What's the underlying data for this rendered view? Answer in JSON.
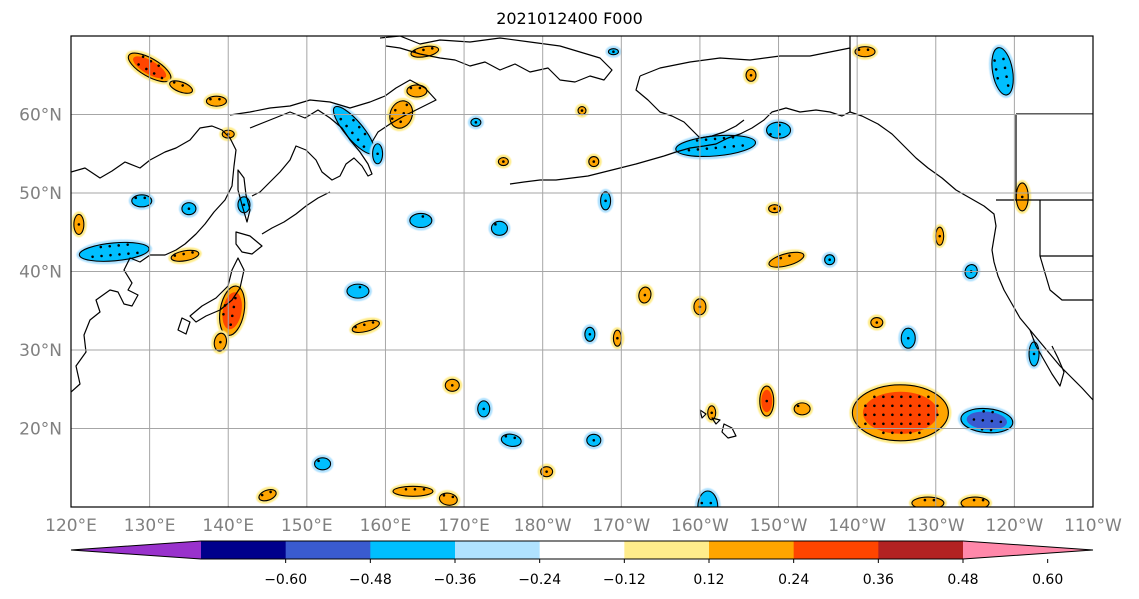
{
  "title": "2021012400 F000",
  "map": {
    "lon_range": [
      120,
      250
    ],
    "lat_range": [
      10,
      70
    ],
    "x_ticks": [
      {
        "lon": 120,
        "label": "120°E"
      },
      {
        "lon": 130,
        "label": "130°E"
      },
      {
        "lon": 140,
        "label": "140°E"
      },
      {
        "lon": 150,
        "label": "150°E"
      },
      {
        "lon": 160,
        "label": "160°E"
      },
      {
        "lon": 170,
        "label": "170°E"
      },
      {
        "lon": 180,
        "label": "180°W"
      },
      {
        "lon": 190,
        "label": "170°W"
      },
      {
        "lon": 200,
        "label": "160°W"
      },
      {
        "lon": 210,
        "label": "150°W"
      },
      {
        "lon": 220,
        "label": "140°W"
      },
      {
        "lon": 230,
        "label": "130°W"
      },
      {
        "lon": 240,
        "label": "120°W"
      },
      {
        "lon": 250,
        "label": "110°W"
      }
    ],
    "y_ticks": [
      {
        "lat": 20,
        "label": "20°N"
      },
      {
        "lat": 30,
        "label": "30°N"
      },
      {
        "lat": 40,
        "label": "40°N"
      },
      {
        "lat": 50,
        "label": "50°N"
      },
      {
        "lat": 60,
        "label": "60°N"
      }
    ],
    "grid": true
  },
  "colorbar": {
    "colors": [
      "#9932CC",
      "#00008B",
      "#3A5BD0",
      "#00BFFF",
      "#B0E2FF",
      "#FFFFFF",
      "#FFEC8B",
      "#FFA500",
      "#FF4500",
      "#B22222",
      "#FF88AA"
    ],
    "tick_labels": [
      "-0.60",
      "-0.48",
      "-0.36",
      "-0.24",
      "-0.12",
      "0.12",
      "0.24",
      "0.36",
      "0.48",
      "0.60"
    ],
    "extend": "both"
  },
  "anomalies": [
    {
      "lon": 130.0,
      "lat": 66.0,
      "level": 0.4,
      "rx": 24,
      "ry": 9,
      "rot": 30
    },
    {
      "lon": 134.0,
      "lat": 63.5,
      "level": 0.3,
      "rx": 12,
      "ry": 5,
      "rot": 20
    },
    {
      "lon": 138.5,
      "lat": 61.7,
      "level": 0.28,
      "rx": 10,
      "ry": 5,
      "rot": 0
    },
    {
      "lon": 140.0,
      "lat": 57.5,
      "level": 0.25,
      "rx": 6,
      "ry": 4,
      "rot": 0
    },
    {
      "lon": 156.0,
      "lat": 58.0,
      "level": -0.3,
      "rx": 30,
      "ry": 9,
      "rot": 50
    },
    {
      "lon": 162.0,
      "lat": 60.0,
      "level": 0.3,
      "rx": 11,
      "ry": 14,
      "rot": 20
    },
    {
      "lon": 164.0,
      "lat": 63.0,
      "level": 0.28,
      "rx": 10,
      "ry": 6,
      "rot": 0
    },
    {
      "lon": 165.0,
      "lat": 68.0,
      "level": 0.26,
      "rx": 14,
      "ry": 5,
      "rot": -10
    },
    {
      "lon": 159.0,
      "lat": 55.0,
      "level": -0.25,
      "rx": 5,
      "ry": 10,
      "rot": 0
    },
    {
      "lon": 125.5,
      "lat": 42.5,
      "level": -0.3,
      "rx": 35,
      "ry": 9,
      "rot": -5
    },
    {
      "lon": 134.5,
      "lat": 42.0,
      "level": 0.26,
      "rx": 14,
      "ry": 5,
      "rot": -10
    },
    {
      "lon": 129.0,
      "lat": 49.0,
      "level": -0.28,
      "rx": 10,
      "ry": 6,
      "rot": 0
    },
    {
      "lon": 135.0,
      "lat": 48.0,
      "level": -0.26,
      "rx": 7,
      "ry": 6,
      "rot": 0
    },
    {
      "lon": 142.0,
      "lat": 48.5,
      "level": -0.25,
      "rx": 6,
      "ry": 8,
      "rot": 0
    },
    {
      "lon": 121.0,
      "lat": 46.0,
      "level": 0.27,
      "rx": 5,
      "ry": 10,
      "rot": 0
    },
    {
      "lon": 140.5,
      "lat": 35.0,
      "level": 0.38,
      "rx": 12,
      "ry": 25,
      "rot": 10
    },
    {
      "lon": 139.0,
      "lat": 31.0,
      "level": 0.28,
      "rx": 6,
      "ry": 9,
      "rot": 10
    },
    {
      "lon": 156.5,
      "lat": 37.5,
      "level": -0.27,
      "rx": 11,
      "ry": 7,
      "rot": 0
    },
    {
      "lon": 157.5,
      "lat": 33.0,
      "level": 0.27,
      "rx": 14,
      "ry": 5,
      "rot": -15
    },
    {
      "lon": 164.5,
      "lat": 46.5,
      "level": -0.28,
      "rx": 11,
      "ry": 7,
      "rot": 0
    },
    {
      "lon": 174.5,
      "lat": 45.5,
      "level": -0.25,
      "rx": 8,
      "ry": 7,
      "rot": 0
    },
    {
      "lon": 186.5,
      "lat": 54.0,
      "level": 0.25,
      "rx": 5,
      "ry": 5,
      "rot": 0
    },
    {
      "lon": 188.0,
      "lat": 49.0,
      "level": -0.25,
      "rx": 5,
      "ry": 9,
      "rot": 0
    },
    {
      "lon": 202.0,
      "lat": 56.0,
      "level": -0.32,
      "rx": 40,
      "ry": 10,
      "rot": -5
    },
    {
      "lon": 210.0,
      "lat": 58.0,
      "level": -0.28,
      "rx": 12,
      "ry": 8,
      "rot": 0
    },
    {
      "lon": 209.5,
      "lat": 48.0,
      "level": 0.26,
      "rx": 6,
      "ry": 4,
      "rot": 0
    },
    {
      "lon": 211.0,
      "lat": 41.5,
      "level": 0.28,
      "rx": 18,
      "ry": 6,
      "rot": -15
    },
    {
      "lon": 193.0,
      "lat": 37.0,
      "level": 0.28,
      "rx": 6,
      "ry": 8,
      "rot": 10
    },
    {
      "lon": 200.0,
      "lat": 35.5,
      "level": 0.27,
      "rx": 6,
      "ry": 8,
      "rot": 0
    },
    {
      "lon": 186.0,
      "lat": 32.0,
      "level": -0.27,
      "rx": 5,
      "ry": 7,
      "rot": 0
    },
    {
      "lon": 189.5,
      "lat": 31.5,
      "level": 0.26,
      "rx": 4,
      "ry": 8,
      "rot": 0
    },
    {
      "lon": 168.5,
      "lat": 25.5,
      "level": 0.27,
      "rx": 7,
      "ry": 6,
      "rot": 0
    },
    {
      "lon": 172.5,
      "lat": 22.5,
      "level": -0.26,
      "rx": 6,
      "ry": 8,
      "rot": 0
    },
    {
      "lon": 176.0,
      "lat": 18.5,
      "level": -0.27,
      "rx": 10,
      "ry": 6,
      "rot": 10
    },
    {
      "lon": 186.5,
      "lat": 18.5,
      "level": -0.26,
      "rx": 7,
      "ry": 6,
      "rot": 0
    },
    {
      "lon": 152.0,
      "lat": 15.5,
      "level": -0.26,
      "rx": 8,
      "ry": 6,
      "rot": 0
    },
    {
      "lon": 163.5,
      "lat": 12.0,
      "level": 0.27,
      "rx": 20,
      "ry": 5,
      "rot": 0
    },
    {
      "lon": 168.0,
      "lat": 11.0,
      "level": 0.27,
      "rx": 9,
      "ry": 6,
      "rot": 10
    },
    {
      "lon": 180.5,
      "lat": 14.5,
      "level": 0.26,
      "rx": 6,
      "ry": 5,
      "rot": 0
    },
    {
      "lon": 145.0,
      "lat": 11.5,
      "level": 0.26,
      "rx": 9,
      "ry": 5,
      "rot": -20
    },
    {
      "lon": 201.5,
      "lat": 22.0,
      "level": 0.27,
      "rx": 4,
      "ry": 7,
      "rot": 0
    },
    {
      "lon": 208.5,
      "lat": 23.5,
      "level": 0.38,
      "rx": 7,
      "ry": 15,
      "rot": 0
    },
    {
      "lon": 213.0,
      "lat": 22.5,
      "level": 0.27,
      "rx": 8,
      "ry": 6,
      "rot": 0
    },
    {
      "lon": 225.5,
      "lat": 22.0,
      "level": 0.42,
      "rx": 48,
      "ry": 28,
      "rot": 0
    },
    {
      "lon": 236.5,
      "lat": 21.0,
      "level": -0.38,
      "rx": 26,
      "ry": 12,
      "rot": 5
    },
    {
      "lon": 201.0,
      "lat": 10.0,
      "level": -0.35,
      "rx": 10,
      "ry": 16,
      "rot": 0
    },
    {
      "lon": 229.0,
      "lat": 10.5,
      "level": 0.27,
      "rx": 16,
      "ry": 6,
      "rot": 0
    },
    {
      "lon": 235.0,
      "lat": 10.5,
      "level": 0.27,
      "rx": 14,
      "ry": 6,
      "rot": 0
    },
    {
      "lon": 222.5,
      "lat": 33.5,
      "level": 0.28,
      "rx": 6,
      "ry": 5,
      "rot": 0
    },
    {
      "lon": 226.5,
      "lat": 31.5,
      "level": -0.26,
      "rx": 7,
      "ry": 10,
      "rot": 0
    },
    {
      "lon": 230.5,
      "lat": 44.5,
      "level": 0.26,
      "rx": 4,
      "ry": 9,
      "rot": 0
    },
    {
      "lon": 238.5,
      "lat": 65.5,
      "level": -0.32,
      "rx": 10,
      "ry": 24,
      "rot": -10
    },
    {
      "lon": 241.0,
      "lat": 49.5,
      "level": 0.3,
      "rx": 6,
      "ry": 14,
      "rot": 0
    },
    {
      "lon": 242.5,
      "lat": 29.5,
      "level": -0.26,
      "rx": 5,
      "ry": 12,
      "rot": 0
    },
    {
      "lon": 221.0,
      "lat": 68.0,
      "level": 0.27,
      "rx": 10,
      "ry": 5,
      "rot": 0
    },
    {
      "lon": 216.5,
      "lat": 41.5,
      "level": -0.25,
      "rx": 5,
      "ry": 5,
      "rot": 0
    },
    {
      "lon": 234.5,
      "lat": 40.0,
      "level": -0.27,
      "rx": 6,
      "ry": 7,
      "rot": 20
    },
    {
      "lon": 189.0,
      "lat": 68.0,
      "level": -0.25,
      "rx": 5,
      "ry": 3,
      "rot": 0
    },
    {
      "lon": 206.5,
      "lat": 65.0,
      "level": 0.26,
      "rx": 5,
      "ry": 6,
      "rot": 0
    },
    {
      "lon": 185.0,
      "lat": 60.5,
      "level": 0.25,
      "rx": 4,
      "ry": 4,
      "rot": 0
    },
    {
      "lon": 175.0,
      "lat": 54.0,
      "level": 0.25,
      "rx": 5,
      "ry": 4,
      "rot": 0
    },
    {
      "lon": 171.5,
      "lat": 59.0,
      "level": -0.25,
      "rx": 5,
      "ry": 4,
      "rot": 0
    }
  ]
}
